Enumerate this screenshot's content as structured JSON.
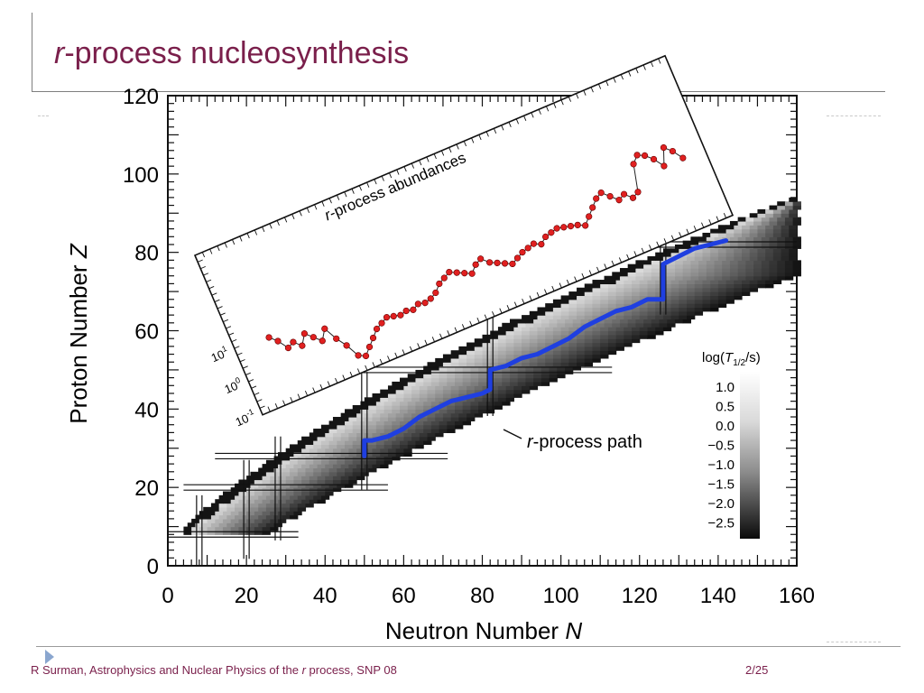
{
  "slide": {
    "title_italic": "r",
    "title_rest": "-process nucleosynthesis",
    "footer_left_pre": "R Surman, Astrophysics and Nuclear Physics of the ",
    "footer_left_italic": "r",
    "footer_left_post": " process, SNP 08",
    "footer_right": "2/25"
  },
  "chart_data": {
    "type": "scatter",
    "title": "",
    "xlabel": "Neutron Number",
    "xlabel_var": "N",
    "ylabel": "Proton Number",
    "ylabel_var": "Z",
    "xlim": [
      0,
      160
    ],
    "ylim": [
      0,
      120
    ],
    "x_ticks": [
      0,
      20,
      40,
      60,
      80,
      100,
      120,
      140,
      160
    ],
    "y_ticks": [
      0,
      20,
      40,
      60,
      80,
      100,
      120
    ],
    "magic_neutron_numbers": [
      8,
      20,
      28,
      50,
      82,
      126
    ],
    "magic_proton_numbers": [
      8,
      20,
      28,
      50,
      82
    ],
    "path_label_italic": "r",
    "path_label_rest": "-process path",
    "path_color": "#1f3fe0",
    "rprocess_path": [
      [
        50,
        28
      ],
      [
        50,
        32
      ],
      [
        52,
        32
      ],
      [
        56,
        33
      ],
      [
        60,
        35
      ],
      [
        64,
        38
      ],
      [
        68,
        40
      ],
      [
        72,
        42
      ],
      [
        76,
        43
      ],
      [
        80,
        44
      ],
      [
        82,
        45
      ],
      [
        82,
        50
      ],
      [
        86,
        51
      ],
      [
        90,
        53
      ],
      [
        94,
        54
      ],
      [
        98,
        56
      ],
      [
        102,
        58
      ],
      [
        106,
        61
      ],
      [
        110,
        63
      ],
      [
        114,
        65
      ],
      [
        118,
        66
      ],
      [
        122,
        68
      ],
      [
        126,
        68
      ],
      [
        126,
        77
      ],
      [
        130,
        79
      ],
      [
        134,
        81
      ],
      [
        138,
        82
      ],
      [
        142,
        83
      ]
    ],
    "colorbar": {
      "title_pre": "log(",
      "title_var": "T",
      "title_sub": "1/2",
      "title_post": "/s)",
      "labels": [
        "1.0",
        "0.5",
        "0.0",
        "−0.5",
        "−1.0",
        "−1.5",
        "−2.0",
        "−2.5"
      ]
    },
    "inset": {
      "title_italic": "r",
      "title_rest": "-process abundances",
      "y_ticks": [
        "10",
        "10",
        "10"
      ],
      "y_tick_exponents": [
        "1",
        "0",
        "-1"
      ],
      "y_tick_values": [
        10,
        1,
        0.1
      ],
      "marker_color": "#e02020",
      "abundance_log": [
        0.9,
        0.7,
        0.4,
        0.5,
        0.3,
        0.6,
        0.4,
        0.2,
        0.5,
        0.1,
        -0.2,
        -0.6,
        -0.7,
        -0.5,
        -0.3,
        -0.1,
        0.0,
        0.1,
        0.05,
        0.0,
        0.05,
        0.0,
        0.1,
        0.05,
        0.1,
        0.2,
        0.4,
        0.5,
        0.6,
        0.5,
        0.4,
        0.3,
        0.5,
        0.6,
        0.4,
        0.3,
        0.2,
        0.1,
        0.2,
        0.3,
        0.35,
        0.4,
        0.3,
        0.45,
        0.5,
        0.55,
        0.5,
        0.45,
        0.4,
        0.3,
        0.5,
        0.7,
        0.9,
        1.0,
        0.8,
        0.6,
        0.7,
        0.5,
        0.6,
        1.4,
        1.6,
        1.5,
        1.3,
        1.0,
        1.5,
        1.3,
        1.0
      ]
    }
  }
}
